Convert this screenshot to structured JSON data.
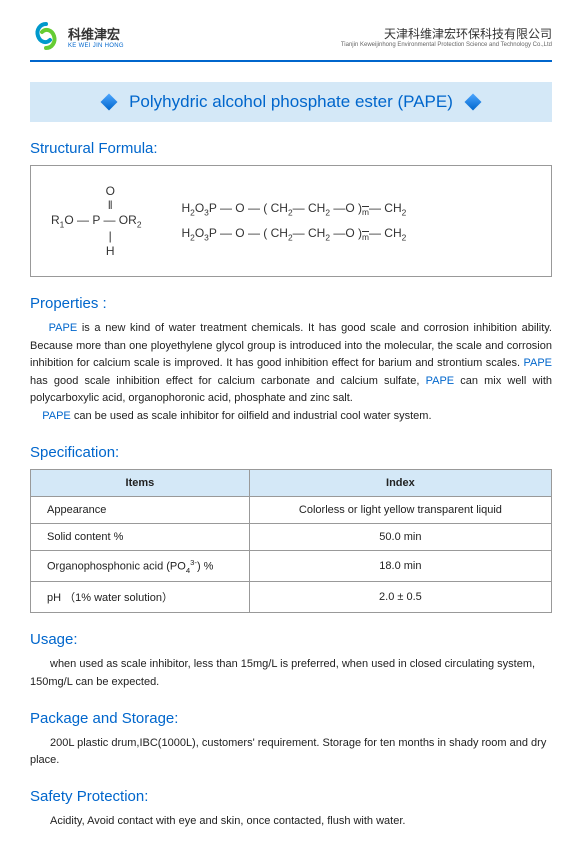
{
  "header": {
    "logo_cn": "科维津宏",
    "logo_en": "KE WEI JIN HONG",
    "company_cn": "天津科维津宏环保科技有限公司",
    "company_en": "Tianjin Keweijinhong Environmental Protection Science and Technology Co.,Ltd",
    "logo_colors": {
      "blue": "#0099cc",
      "green": "#66cc33"
    }
  },
  "title": {
    "text": "Polyhydric alcohol phosphate ester (PAPE)",
    "bg_color": "#d4e8f7",
    "text_color": "#0066cc"
  },
  "sections": {
    "structural_formula": "Structural Formula:",
    "properties": "Properties :",
    "specification": "Specification:",
    "usage": "Usage:",
    "package": "Package and Storage:",
    "safety": "Safety Protection:"
  },
  "properties_html": "<span class='pape'>PAPE</span> is a new kind of water treatment chemicals. It has good scale and corrosion inhibition ability. Because more than one ployethylene glycol group is introduced into the molecular, the scale and corrosion inhibition for calcium scale is improved. It has good inhibition effect for barium and strontium scales. <span class='pape'>PAPE</span> has good scale inhibition effect for calcium carbonate and calcium sulfate, <span class='pape'>PAPE</span> can mix well with polycarboxylic acid, organophoronic acid, phosphate and zinc salt.<br>&nbsp;&nbsp;&nbsp;&nbsp;<span class='pape'>PAPE</span> can be used as scale inhibitor for oilfield and industrial cool water system.",
  "spec_table": {
    "headers": [
      "Items",
      "Index"
    ],
    "rows": [
      [
        "Appearance",
        "Colorless or light yellow transparent liquid"
      ],
      [
        "Solid content %",
        "50.0 min"
      ],
      [
        "Organophosphonic acid (PO₄³⁻) %",
        "18.0 min"
      ],
      [
        "pH （1% water solution）",
        "2.0 ± 0.5"
      ]
    ]
  },
  "usage_text": "when used as scale inhibitor, less than 15mg/L is preferred, when used in closed circulating system, 150mg/L can be expected.",
  "package_text": "200L plastic drum,IBC(1000L), customers' requirement. Storage for ten months in shady room and dry place.",
  "safety_text": "Acidity, Avoid contact with eye and skin, once contacted, flush with water.",
  "colors": {
    "primary": "#0066cc",
    "table_header_bg": "#d4e8f7",
    "border": "#999999",
    "text": "#222222"
  }
}
